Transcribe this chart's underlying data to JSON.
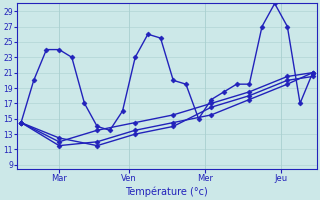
{
  "xlabel": "Température (°c)",
  "background_color": "#cce8e8",
  "grid_color": "#aad0d0",
  "line_color": "#2222bb",
  "marker_size": 2.5,
  "ylim": [
    8.5,
    30.0
  ],
  "yticks": [
    9,
    11,
    13,
    15,
    17,
    19,
    21,
    23,
    25,
    27,
    29
  ],
  "xlim": [
    -0.3,
    23.3
  ],
  "day_labels": [
    "Mar",
    "Ven",
    "Mer",
    "Jeu"
  ],
  "day_xticks": [
    3.0,
    8.5,
    14.5,
    20.5
  ],
  "vlines": [
    3.0,
    8.5,
    14.5,
    20.5
  ],
  "series1_x": [
    0,
    1,
    2,
    3,
    4,
    5,
    6,
    7,
    8,
    9,
    10,
    11,
    12,
    13,
    14,
    15,
    16,
    17,
    18,
    19,
    20,
    21,
    22,
    23
  ],
  "series1_y": [
    14.5,
    20.0,
    24.0,
    24.0,
    23.0,
    17.0,
    14.0,
    13.5,
    16.0,
    23.0,
    26.0,
    25.5,
    20.0,
    19.5,
    15.0,
    17.5,
    18.5,
    19.5,
    19.5,
    27.0,
    30.0,
    27.0,
    17.0,
    21.0
  ],
  "series2_x": [
    0,
    3,
    6,
    9,
    12,
    15,
    18,
    21,
    23
  ],
  "series2_y": [
    14.5,
    12.5,
    11.5,
    13.0,
    14.0,
    16.5,
    18.0,
    20.0,
    20.5
  ],
  "series3_x": [
    0,
    3,
    6,
    9,
    12,
    15,
    18,
    21,
    23
  ],
  "series3_y": [
    14.5,
    11.5,
    12.0,
    13.5,
    14.5,
    15.5,
    17.5,
    19.5,
    21.0
  ],
  "series4_x": [
    0,
    3,
    6,
    9,
    12,
    15,
    18,
    21,
    23
  ],
  "series4_y": [
    14.5,
    12.0,
    13.5,
    14.5,
    15.5,
    17.0,
    18.5,
    20.5,
    21.0
  ]
}
